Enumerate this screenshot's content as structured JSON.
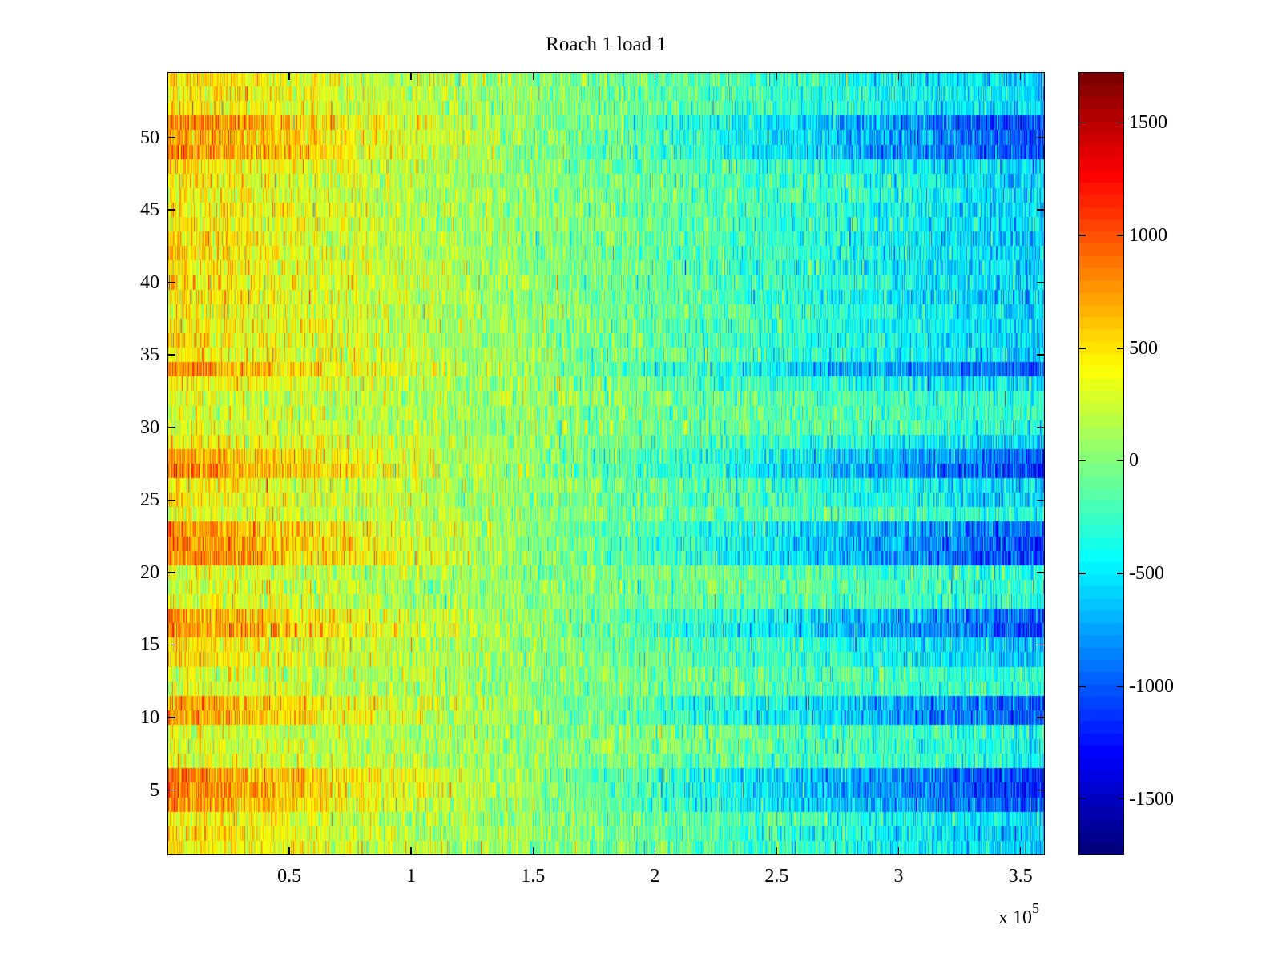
{
  "chart_data": {
    "type": "heatmap",
    "title": "Roach 1 load 1",
    "xlabel": "",
    "ylabel": "",
    "x_exponent_label": "x 10",
    "x_exponent": "5",
    "xlim": [
      0,
      360000
    ],
    "ylim": [
      0.5,
      54.5
    ],
    "rows": 54,
    "columns": 1095,
    "x_ticks": [
      0.5,
      1,
      1.5,
      2,
      2.5,
      3,
      3.5
    ],
    "x_tick_labels": [
      "0.5",
      "1",
      "1.5",
      "2",
      "2.5",
      "3",
      "3.5"
    ],
    "y_ticks": [
      5,
      10,
      15,
      20,
      25,
      30,
      35,
      40,
      45,
      50
    ],
    "y_tick_labels": [
      "5",
      "10",
      "15",
      "20",
      "25",
      "30",
      "35",
      "40",
      "45",
      "50"
    ],
    "colormap": "jet",
    "clim": [
      -1750,
      1725
    ],
    "colorbar_ticks": [
      1500,
      1000,
      500,
      0,
      -500,
      -1000,
      -1500
    ],
    "colorbar_tick_labels": [
      "1500",
      "1000",
      "500",
      "0",
      "-500",
      "-1000",
      "-1500"
    ],
    "trend_mean_at_start": 500,
    "trend_mean_at_end": -600,
    "strong_rows": [
      4,
      5,
      6,
      10,
      11,
      16,
      17,
      21,
      22,
      23,
      27,
      28,
      34,
      49,
      50,
      51
    ],
    "weak_rows": [
      7,
      8,
      9,
      12,
      13,
      18,
      19,
      20,
      24,
      30,
      31,
      32
    ]
  }
}
